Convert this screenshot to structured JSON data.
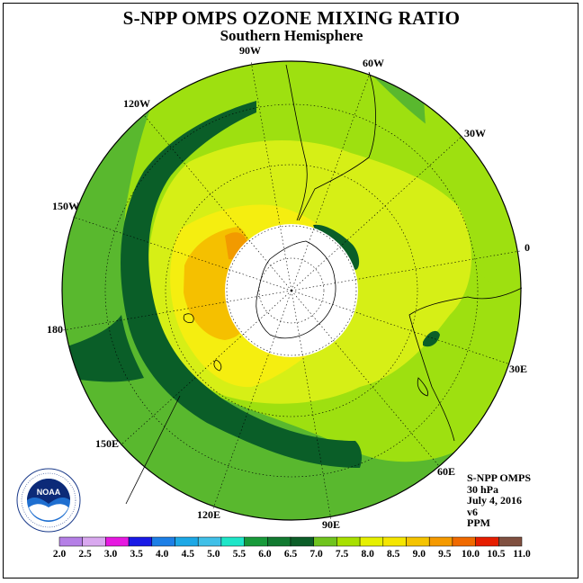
{
  "title": "S-NPP OMPS OZONE MIXING RATIO",
  "subtitle": "Southern Hemisphere",
  "longitude_labels": [
    "90W",
    "60W",
    "30W",
    "0",
    "30E",
    "60E",
    "90E",
    "120E",
    "150E",
    "180",
    "150W",
    "120W"
  ],
  "info": {
    "instrument": "S-NPP OMPS",
    "level": "30 hPa",
    "date": "July 4, 2016",
    "version": "v6",
    "units": "PPM"
  },
  "logo": {
    "text": "NOAA",
    "ring_text": "NATIONAL OCEANIC AND ATMOSPHERIC ADMINISTRATION · U.S. DEPARTMENT OF COMMERCE"
  },
  "colorbar": {
    "ticks": [
      "2.0",
      "2.5",
      "3.0",
      "3.5",
      "4.0",
      "4.5",
      "5.0",
      "5.5",
      "6.0",
      "6.5",
      "7.0",
      "7.5",
      "8.0",
      "8.5",
      "9.0",
      "9.5",
      "10.0",
      "10.5",
      "11.0"
    ],
    "colors": [
      "#b57fe6",
      "#d9a8ef",
      "#e619e0",
      "#1a1ae6",
      "#1d7fe6",
      "#1da8e6",
      "#40c0e8",
      "#1ee6c8",
      "#189a3a",
      "#127a30",
      "#0c5e28",
      "#70c41e",
      "#a8e000",
      "#e6f000",
      "#f5e600",
      "#f5c400",
      "#f59a00",
      "#f06a00",
      "#e61e00",
      "#805040"
    ]
  },
  "map_colors": {
    "dark_green": "#0a5e28",
    "green": "#59b82e",
    "light_green": "#9ee010",
    "yellow_green": "#d6ef16",
    "yellow": "#f5ee10",
    "orange": "#f5c000",
    "dark_orange": "#f29a00",
    "polar_night": "#ffffff"
  }
}
